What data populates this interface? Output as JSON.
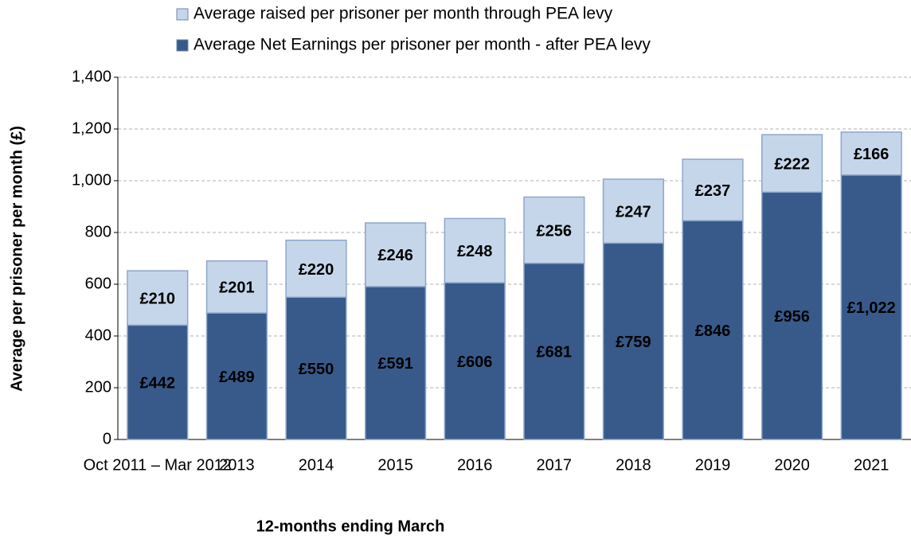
{
  "chart_data": {
    "type": "stacked_bar",
    "x_label": "12-months ending March",
    "y_label": "Average per prisoner per month (£)",
    "categories": [
      "Oct 2011 – Mar 2012",
      "2013",
      "2014",
      "2015",
      "2016",
      "2017",
      "2018",
      "2019",
      "2020",
      "2021"
    ],
    "series": [
      {
        "name": "Average Net Earnings per prisoner per month - after PEA levy",
        "color": "#385a8a",
        "values": [
          442,
          489,
          550,
          591,
          606,
          681,
          759,
          846,
          956,
          1022
        ],
        "value_labels": [
          "£442",
          "£489",
          "£550",
          "£591",
          "£606",
          "£681",
          "£759",
          "£846",
          "£956",
          "£1,022"
        ]
      },
      {
        "name": "Average raised per prisoner per month through PEA levy",
        "color": "#c6d6ea",
        "values": [
          210,
          201,
          220,
          246,
          248,
          256,
          247,
          237,
          222,
          166
        ],
        "value_labels": [
          "£210",
          "£201",
          "£220",
          "£246",
          "£248",
          "£256",
          "£247",
          "£237",
          "£222",
          "£166"
        ]
      }
    ],
    "ylim": [
      0,
      1400
    ],
    "yticks": [
      0,
      200,
      400,
      600,
      800,
      {
        "value": 1000,
        "label": "1,000"
      },
      {
        "value": 1200,
        "label": "1,200"
      },
      {
        "value": 1400,
        "label": "1,400"
      }
    ],
    "grid": true
  }
}
